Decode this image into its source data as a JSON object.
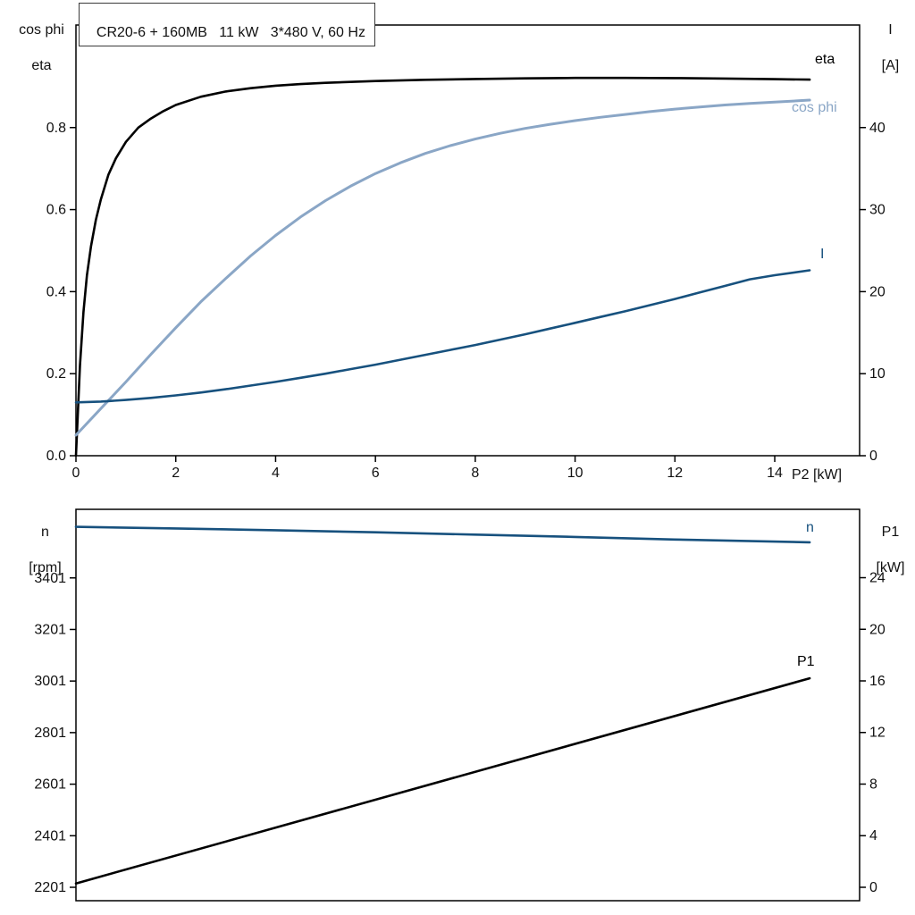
{
  "labels": {
    "title": "CR20-6 + 160MB   11 kW   3*480 V, 60 Hz",
    "top_left_line1": "cos phi",
    "top_left_line2": "eta",
    "top_right_line1": "I",
    "top_right_line2": "[A]",
    "x_axis_label": "P2 [kW]",
    "bottom_left_line1": "n",
    "bottom_left_line2": "[rpm]",
    "bottom_right_line1": "P1",
    "bottom_right_line2": "[kW]",
    "curve_eta": "eta",
    "curve_cosphi": "cos phi",
    "curve_I": "I",
    "curve_n": "n",
    "curve_P1": "P1"
  },
  "colors": {
    "black": "#000000",
    "light_blue": "#8aa6c6",
    "dark_blue": "#17517e",
    "axis": "#000000"
  },
  "chart_data": [
    {
      "type": "line",
      "title": "CR20-6 + 160MB   11 kW   3*480 V, 60 Hz",
      "xlabel": "P2 [kW]",
      "xlim": [
        0,
        15.7
      ],
      "x_ticks": [
        0,
        2,
        4,
        6,
        8,
        10,
        12,
        14
      ],
      "x_tick_labels": [
        "0",
        "2",
        "4",
        "6",
        "8",
        "10",
        "12",
        "14"
      ],
      "left_axis": {
        "label": "cos phi / eta",
        "lim": [
          0,
          1.05
        ],
        "ticks": [
          0,
          0.2,
          0.4,
          0.6,
          0.8
        ],
        "tick_labels": [
          "0.0",
          "0.2",
          "0.4",
          "0.6",
          "0.8"
        ]
      },
      "right_axis": {
        "label": "I [A]",
        "lim": [
          0,
          52.5
        ],
        "ticks": [
          0,
          10,
          20,
          30,
          40
        ],
        "tick_labels": [
          "0",
          "10",
          "20",
          "30",
          "40"
        ]
      },
      "grid": false,
      "series": [
        {
          "name": "eta",
          "axis": "left",
          "color": "#000000",
          "width": 2.6,
          "points": [
            [
              0,
              0
            ],
            [
              0.08,
              0.22
            ],
            [
              0.15,
              0.35
            ],
            [
              0.22,
              0.44
            ],
            [
              0.3,
              0.51
            ],
            [
              0.4,
              0.575
            ],
            [
              0.5,
              0.625
            ],
            [
              0.65,
              0.685
            ],
            [
              0.8,
              0.725
            ],
            [
              1,
              0.765
            ],
            [
              1.25,
              0.8
            ],
            [
              1.5,
              0.822
            ],
            [
              1.75,
              0.84
            ],
            [
              2,
              0.855
            ],
            [
              2.5,
              0.875
            ],
            [
              3,
              0.888
            ],
            [
              3.5,
              0.896
            ],
            [
              4,
              0.902
            ],
            [
              4.5,
              0.906
            ],
            [
              5,
              0.909
            ],
            [
              6,
              0.9135
            ],
            [
              7,
              0.9165
            ],
            [
              8,
              0.9185
            ],
            [
              9,
              0.92
            ],
            [
              10,
              0.921
            ],
            [
              11,
              0.921
            ],
            [
              12,
              0.9205
            ],
            [
              13,
              0.9195
            ],
            [
              14,
              0.918
            ],
            [
              14.7,
              0.917
            ]
          ]
        },
        {
          "name": "cos phi",
          "axis": "left",
          "color": "#8aa6c6",
          "width": 3,
          "points": [
            [
              0,
              0.05
            ],
            [
              0.5,
              0.115
            ],
            [
              1,
              0.18
            ],
            [
              1.5,
              0.247
            ],
            [
              2,
              0.312
            ],
            [
              2.5,
              0.375
            ],
            [
              3,
              0.432
            ],
            [
              3.5,
              0.487
            ],
            [
              4,
              0.537
            ],
            [
              4.5,
              0.582
            ],
            [
              5,
              0.622
            ],
            [
              5.5,
              0.657
            ],
            [
              6,
              0.688
            ],
            [
              6.5,
              0.714
            ],
            [
              7,
              0.737
            ],
            [
              7.5,
              0.756
            ],
            [
              8,
              0.772
            ],
            [
              8.5,
              0.786
            ],
            [
              9,
              0.798
            ],
            [
              9.5,
              0.808
            ],
            [
              10,
              0.817
            ],
            [
              10.5,
              0.825
            ],
            [
              11,
              0.832
            ],
            [
              11.5,
              0.839
            ],
            [
              12,
              0.845
            ],
            [
              12.5,
              0.85
            ],
            [
              13,
              0.855
            ],
            [
              13.5,
              0.859
            ],
            [
              14,
              0.862
            ],
            [
              14.7,
              0.867
            ]
          ]
        },
        {
          "name": "I",
          "axis": "right",
          "color": "#17517e",
          "width": 2.6,
          "points": [
            [
              0,
              6.5
            ],
            [
              0.5,
              6.6
            ],
            [
              1,
              6.8
            ],
            [
              1.5,
              7.05
            ],
            [
              2,
              7.35
            ],
            [
              2.5,
              7.7
            ],
            [
              3,
              8.1
            ],
            [
              3.5,
              8.55
            ],
            [
              4,
              9.0
            ],
            [
              4.5,
              9.5
            ],
            [
              5,
              10.0
            ],
            [
              5.5,
              10.55
            ],
            [
              6,
              11.1
            ],
            [
              6.5,
              11.7
            ],
            [
              7,
              12.3
            ],
            [
              7.5,
              12.9
            ],
            [
              8,
              13.5
            ],
            [
              8.5,
              14.15
            ],
            [
              9,
              14.8
            ],
            [
              9.5,
              15.5
            ],
            [
              10,
              16.2
            ],
            [
              10.5,
              16.9
            ],
            [
              11,
              17.6
            ],
            [
              11.5,
              18.35
            ],
            [
              12,
              19.1
            ],
            [
              12.5,
              19.9
            ],
            [
              13,
              20.7
            ],
            [
              13.5,
              21.5
            ],
            [
              14,
              22.0
            ],
            [
              14.7,
              22.6
            ]
          ]
        }
      ]
    },
    {
      "type": "line",
      "title": "",
      "xlabel": "",
      "xlim": [
        0,
        15.7
      ],
      "x_ticks": [],
      "x_tick_labels": [],
      "left_axis": {
        "label": "n [rpm]",
        "lim": [
          2149,
          3667
        ],
        "ticks": [
          2201,
          2401,
          2601,
          2801,
          3001,
          3201,
          3401
        ],
        "tick_labels": [
          "2201",
          "2401",
          "2601",
          "2801",
          "3001",
          "3201",
          "3401"
        ]
      },
      "right_axis": {
        "label": "P1 [kW]",
        "lim": [
          -1.04,
          29.3
        ],
        "ticks": [
          0,
          4,
          8,
          12,
          16,
          20,
          24
        ],
        "tick_labels": [
          "0",
          "4",
          "8",
          "12",
          "16",
          "20",
          "24"
        ]
      },
      "grid": false,
      "series": [
        {
          "name": "n",
          "axis": "left",
          "color": "#17517e",
          "width": 2.6,
          "points": [
            [
              0,
              3599
            ],
            [
              2,
              3593
            ],
            [
              4,
              3586
            ],
            [
              6,
              3578
            ],
            [
              8,
              3569
            ],
            [
              10,
              3560
            ],
            [
              12,
              3550
            ],
            [
              14.7,
              3539
            ]
          ]
        },
        {
          "name": "P1",
          "axis": "right",
          "color": "#000000",
          "width": 2.6,
          "points": [
            [
              0,
              0.3
            ],
            [
              14.7,
              16.2
            ]
          ]
        }
      ]
    }
  ]
}
